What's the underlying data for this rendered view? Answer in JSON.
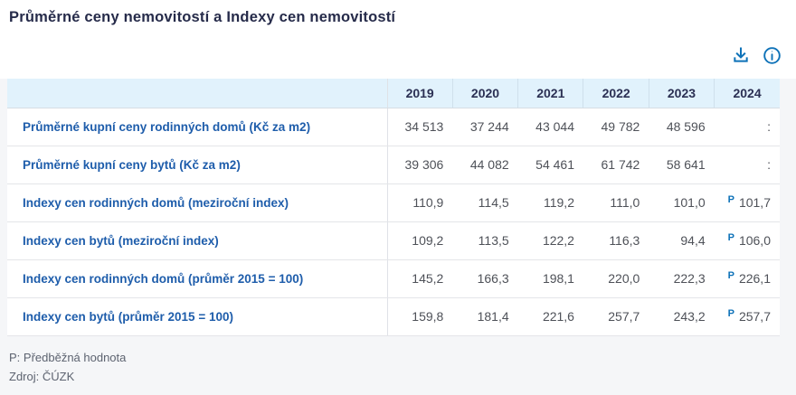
{
  "page": {
    "title": "Průměrné ceny nemovitostí a Indexy cen nemovitostí"
  },
  "toolbar": {
    "download_icon": "download-icon",
    "info_icon": "info-icon"
  },
  "table": {
    "columns": [
      "2019",
      "2020",
      "2021",
      "2022",
      "2023",
      "2024"
    ],
    "rows": [
      {
        "label": "Průměrné kupní ceny rodinných domů (Kč za m2)",
        "values": [
          "34 513",
          "37 244",
          "43 044",
          "49 782",
          "48 596",
          ":"
        ],
        "flags": [
          "",
          "",
          "",
          "",
          "",
          ""
        ]
      },
      {
        "label": "Průměrné kupní ceny bytů (Kč za m2)",
        "values": [
          "39 306",
          "44 082",
          "54 461",
          "61 742",
          "58 641",
          ":"
        ],
        "flags": [
          "",
          "",
          "",
          "",
          "",
          ""
        ]
      },
      {
        "label": "Indexy cen rodinných domů (meziroční index)",
        "values": [
          "110,9",
          "114,5",
          "119,2",
          "111,0",
          "101,0",
          "101,7"
        ],
        "flags": [
          "",
          "",
          "",
          "",
          "",
          "P"
        ]
      },
      {
        "label": "Indexy cen bytů (meziroční index)",
        "values": [
          "109,2",
          "113,5",
          "122,2",
          "116,3",
          "94,4",
          "106,0"
        ],
        "flags": [
          "",
          "",
          "",
          "",
          "",
          "P"
        ]
      },
      {
        "label": "Indexy cen rodinných domů (průměr 2015 = 100)",
        "values": [
          "145,2",
          "166,3",
          "198,1",
          "220,0",
          "222,3",
          "226,1"
        ],
        "flags": [
          "",
          "",
          "",
          "",
          "",
          "P"
        ]
      },
      {
        "label": "Indexy cen bytů (průměr 2015 = 100)",
        "values": [
          "159,8",
          "181,4",
          "221,6",
          "257,7",
          "243,2",
          "257,7"
        ],
        "flags": [
          "",
          "",
          "",
          "",
          "",
          "P"
        ]
      }
    ]
  },
  "footer": {
    "note": "P: Předběžná hodnota",
    "source_label": "Zdroj:",
    "source": "ČÚZK"
  },
  "colors": {
    "accent_blue": "#0e72b8",
    "header_bg": "#e1f2fc",
    "label_blue": "#1e5dab",
    "title_navy": "#262b4a",
    "value_gray": "#4e5158",
    "page_bg": "#f5f6f8"
  }
}
